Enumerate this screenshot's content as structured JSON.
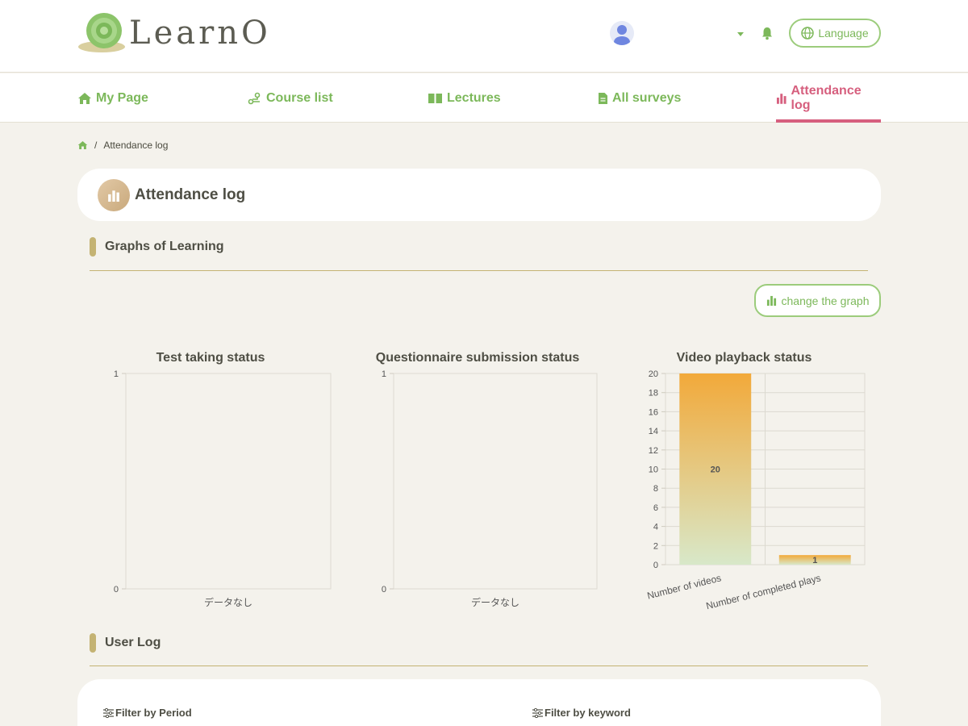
{
  "header": {
    "logo_text": "LearnO",
    "language_label": "Language"
  },
  "nav": {
    "items": [
      {
        "label": "My Page",
        "icon": "home-icon"
      },
      {
        "label": "Course list",
        "icon": "course-icon"
      },
      {
        "label": "Lectures",
        "icon": "book-icon"
      },
      {
        "label": "All surveys",
        "icon": "document-icon"
      },
      {
        "label": "Attendance log",
        "icon": "bar-chart-icon",
        "active": true
      }
    ]
  },
  "breadcrumb": {
    "current": "Attendance log"
  },
  "page": {
    "title": "Attendance log"
  },
  "sections": {
    "graphs": "Graphs of Learning",
    "user_log": "User Log",
    "change_graph_label": "change the graph"
  },
  "filters": {
    "period_label": "Filter by Period",
    "keyword_label": "Filter by keyword"
  },
  "colors": {
    "accent_green": "#7cb85a",
    "active_pink": "#d65f7e",
    "section_gold": "#c4b373",
    "bar_top": "#f2a93a",
    "bar_bottom": "#d8e8c9"
  },
  "chart_data": [
    {
      "type": "bar",
      "title": "Test taking status",
      "categories": [],
      "values": [],
      "ylim": [
        0,
        1
      ],
      "yticks": [
        "0",
        "1"
      ],
      "empty_label": "データなし"
    },
    {
      "type": "bar",
      "title": "Questionnaire submission status",
      "categories": [],
      "values": [],
      "ylim": [
        0,
        1
      ],
      "yticks": [
        "0",
        "1"
      ],
      "empty_label": "データなし"
    },
    {
      "type": "bar",
      "title": "Video playback status",
      "categories": [
        "Number of videos",
        "Number of completed plays"
      ],
      "values": [
        20,
        1
      ],
      "data_labels": [
        "20",
        "1"
      ],
      "ylim": [
        0,
        20
      ],
      "yticks": [
        "0",
        "2",
        "4",
        "6",
        "8",
        "10",
        "12",
        "14",
        "16",
        "18",
        "20"
      ],
      "grid": true
    }
  ]
}
